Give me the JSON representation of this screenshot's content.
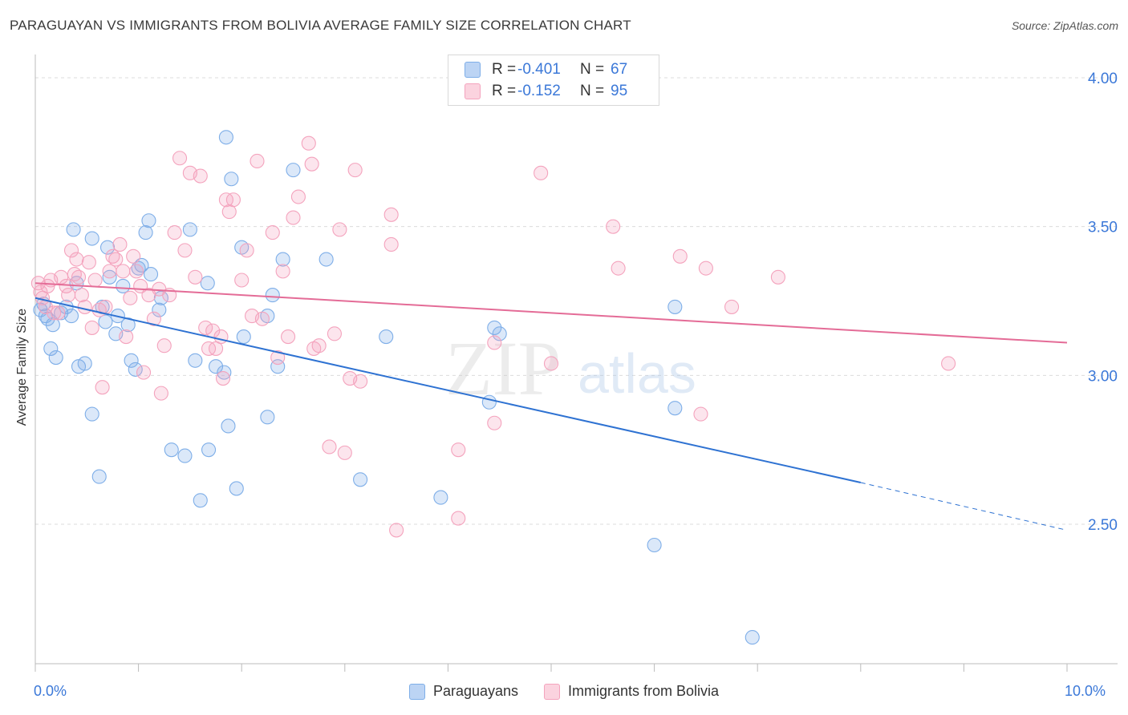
{
  "title": "PARAGUAYAN VS IMMIGRANTS FROM BOLIVIA AVERAGE FAMILY SIZE CORRELATION CHART",
  "source": "Source: ZipAtlas.com",
  "watermark": {
    "zip": "ZIP",
    "atlas": "atlas"
  },
  "legend_top": {
    "rows": [
      {
        "r_label": "R =",
        "r_value": "-0.401",
        "n_label": "N =",
        "n_value": "67",
        "color": "#7eaee8"
      },
      {
        "r_label": "R =",
        "r_value": "-0.152",
        "n_label": "N =",
        "n_value": "95",
        "color": "#f4a3bd"
      }
    ]
  },
  "chart_data": {
    "type": "scatter",
    "xlabel": "",
    "ylabel": "Average Family Size",
    "xlim": [
      0.0,
      10.0
    ],
    "ylim": [
      2.0,
      4.07
    ],
    "x_tick_labels": [
      "0.0%",
      "10.0%"
    ],
    "y_ticks": [
      2.5,
      3.0,
      3.5,
      4.0
    ],
    "y_tick_labels": [
      "2.50",
      "3.00",
      "3.50",
      "4.00"
    ],
    "grid": "horizontal dashed",
    "series": [
      {
        "name": "Paraguayans",
        "color": "#7eaee8",
        "line_color": "#2e72d2",
        "trend": {
          "x0": 0.0,
          "y0": 3.26,
          "x1": 8.0,
          "y1": 2.64,
          "dashed_to_x": 10.0,
          "dashed_to_y": 2.48
        },
        "points": [
          [
            0.05,
            3.22
          ],
          [
            0.08,
            3.24
          ],
          [
            0.1,
            3.2
          ],
          [
            0.12,
            3.19
          ],
          [
            0.15,
            3.09
          ],
          [
            0.17,
            3.17
          ],
          [
            0.2,
            3.06
          ],
          [
            0.25,
            3.21
          ],
          [
            0.3,
            3.23
          ],
          [
            0.35,
            3.2
          ],
          [
            0.37,
            3.49
          ],
          [
            0.4,
            3.31
          ],
          [
            0.42,
            3.03
          ],
          [
            0.48,
            3.04
          ],
          [
            0.55,
            2.87
          ],
          [
            0.55,
            3.46
          ],
          [
            0.62,
            2.66
          ],
          [
            0.65,
            3.23
          ],
          [
            0.68,
            3.18
          ],
          [
            0.7,
            3.43
          ],
          [
            0.72,
            3.33
          ],
          [
            0.78,
            3.14
          ],
          [
            0.8,
            3.2
          ],
          [
            0.85,
            3.3
          ],
          [
            0.9,
            3.17
          ],
          [
            0.93,
            3.05
          ],
          [
            0.97,
            3.02
          ],
          [
            1.0,
            3.36
          ],
          [
            1.03,
            3.37
          ],
          [
            1.07,
            3.48
          ],
          [
            1.1,
            3.52
          ],
          [
            1.12,
            3.34
          ],
          [
            1.2,
            3.22
          ],
          [
            1.22,
            3.26
          ],
          [
            1.32,
            2.75
          ],
          [
            1.45,
            2.73
          ],
          [
            1.5,
            3.49
          ],
          [
            1.55,
            3.05
          ],
          [
            1.6,
            2.58
          ],
          [
            1.68,
            2.75
          ],
          [
            1.67,
            3.31
          ],
          [
            1.75,
            3.03
          ],
          [
            1.83,
            3.01
          ],
          [
            1.85,
            3.8
          ],
          [
            1.87,
            2.83
          ],
          [
            1.9,
            3.66
          ],
          [
            1.95,
            2.62
          ],
          [
            2.0,
            3.43
          ],
          [
            2.02,
            3.13
          ],
          [
            2.25,
            3.2
          ],
          [
            2.3,
            3.27
          ],
          [
            2.35,
            3.03
          ],
          [
            2.4,
            3.39
          ],
          [
            2.5,
            3.69
          ],
          [
            2.25,
            2.86
          ],
          [
            2.82,
            3.39
          ],
          [
            3.15,
            2.65
          ],
          [
            3.4,
            3.13
          ],
          [
            3.93,
            2.59
          ],
          [
            4.4,
            2.91
          ],
          [
            4.45,
            3.16
          ],
          [
            4.5,
            3.14
          ],
          [
            6.0,
            2.43
          ],
          [
            6.2,
            3.23
          ],
          [
            6.2,
            2.89
          ],
          [
            6.95,
            2.12
          ]
        ]
      },
      {
        "name": "Immigrants from Bolivia",
        "color": "#f4a3bd",
        "line_color": "#e46c97",
        "trend": {
          "x0": 0.0,
          "y0": 3.31,
          "x1": 10.0,
          "y1": 3.11
        },
        "points": [
          [
            0.03,
            3.31
          ],
          [
            0.05,
            3.28
          ],
          [
            0.07,
            3.26
          ],
          [
            0.1,
            3.23
          ],
          [
            0.12,
            3.3
          ],
          [
            0.15,
            3.32
          ],
          [
            0.18,
            3.21
          ],
          [
            0.22,
            3.21
          ],
          [
            0.25,
            3.33
          ],
          [
            0.3,
            3.3
          ],
          [
            0.32,
            3.27
          ],
          [
            0.35,
            3.42
          ],
          [
            0.38,
            3.34
          ],
          [
            0.4,
            3.39
          ],
          [
            0.42,
            3.33
          ],
          [
            0.45,
            3.27
          ],
          [
            0.48,
            3.23
          ],
          [
            0.52,
            3.38
          ],
          [
            0.55,
            3.16
          ],
          [
            0.58,
            3.32
          ],
          [
            0.62,
            3.22
          ],
          [
            0.65,
            2.96
          ],
          [
            0.68,
            3.23
          ],
          [
            0.72,
            3.35
          ],
          [
            0.75,
            3.4
          ],
          [
            0.78,
            3.39
          ],
          [
            0.82,
            3.44
          ],
          [
            0.85,
            3.35
          ],
          [
            0.88,
            3.13
          ],
          [
            0.92,
            3.26
          ],
          [
            0.95,
            3.4
          ],
          [
            0.98,
            3.35
          ],
          [
            1.02,
            3.3
          ],
          [
            1.05,
            3.01
          ],
          [
            1.1,
            3.27
          ],
          [
            1.15,
            3.19
          ],
          [
            1.2,
            3.29
          ],
          [
            1.22,
            2.94
          ],
          [
            1.25,
            3.1
          ],
          [
            1.3,
            3.27
          ],
          [
            1.35,
            3.48
          ],
          [
            1.4,
            3.73
          ],
          [
            1.45,
            3.42
          ],
          [
            1.5,
            3.68
          ],
          [
            1.55,
            3.33
          ],
          [
            1.6,
            3.67
          ],
          [
            1.65,
            3.16
          ],
          [
            1.68,
            3.09
          ],
          [
            1.72,
            3.15
          ],
          [
            1.75,
            3.09
          ],
          [
            1.8,
            3.13
          ],
          [
            1.82,
            2.99
          ],
          [
            1.85,
            3.59
          ],
          [
            1.88,
            3.55
          ],
          [
            1.92,
            3.59
          ],
          [
            2.0,
            3.32
          ],
          [
            2.05,
            3.42
          ],
          [
            2.1,
            3.2
          ],
          [
            2.15,
            3.72
          ],
          [
            2.2,
            3.19
          ],
          [
            2.3,
            3.48
          ],
          [
            2.35,
            3.06
          ],
          [
            2.4,
            3.35
          ],
          [
            2.45,
            3.13
          ],
          [
            2.5,
            3.53
          ],
          [
            2.55,
            3.6
          ],
          [
            2.65,
            3.78
          ],
          [
            2.68,
            3.71
          ],
          [
            2.7,
            3.09
          ],
          [
            2.75,
            3.1
          ],
          [
            2.85,
            2.76
          ],
          [
            2.9,
            3.14
          ],
          [
            2.95,
            3.49
          ],
          [
            3.0,
            2.74
          ],
          [
            3.05,
            2.99
          ],
          [
            3.1,
            3.69
          ],
          [
            3.15,
            2.98
          ],
          [
            3.45,
            3.54
          ],
          [
            3.5,
            2.48
          ],
          [
            3.45,
            3.44
          ],
          [
            4.1,
            2.75
          ],
          [
            4.1,
            2.52
          ],
          [
            4.45,
            3.11
          ],
          [
            4.45,
            2.84
          ],
          [
            4.9,
            3.68
          ],
          [
            5.0,
            3.04
          ],
          [
            5.6,
            3.5
          ],
          [
            5.65,
            3.36
          ],
          [
            6.25,
            3.4
          ],
          [
            6.45,
            2.87
          ],
          [
            6.5,
            3.36
          ],
          [
            6.75,
            3.23
          ],
          [
            7.2,
            3.33
          ],
          [
            8.85,
            3.04
          ]
        ]
      }
    ]
  }
}
